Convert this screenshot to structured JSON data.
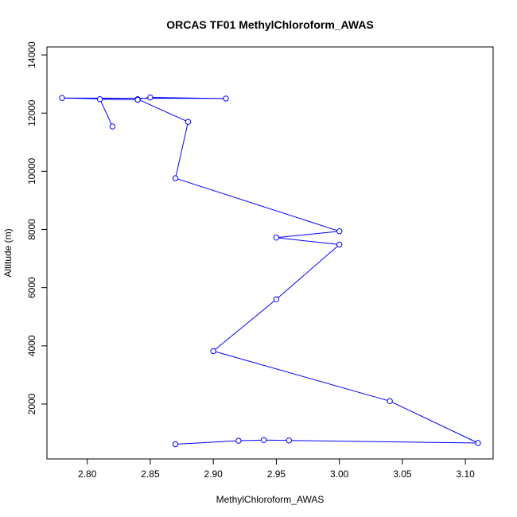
{
  "chart_data": {
    "type": "line",
    "title": "ORCAS TF01 MethylChloroform_AWAS",
    "xlabel": "MethylChloroform_AWAS",
    "ylabel": "Altitude (m)",
    "xlim": [
      2.768,
      3.122
    ],
    "ylim": [
      113,
      14275
    ],
    "x_ticks": [
      2.8,
      2.85,
      2.9,
      2.95,
      3.0,
      3.05,
      3.1
    ],
    "x_tick_labels": [
      "2.80",
      "2.85",
      "2.90",
      "2.95",
      "3.00",
      "3.05",
      "3.10"
    ],
    "y_ticks": [
      2000,
      4000,
      6000,
      8000,
      10000,
      12000,
      14000
    ],
    "y_tick_labels": [
      "2000",
      "4000",
      "6000",
      "8000",
      "10000",
      "12000",
      "14000"
    ],
    "grid": false,
    "series": [
      {
        "color": "#0000ff",
        "marker": "open-circle",
        "x": [
          2.87,
          2.92,
          2.94,
          2.96,
          3.11,
          3.04,
          2.9,
          2.95,
          3.0,
          2.95,
          3.0,
          2.87,
          2.88,
          2.84,
          2.85,
          2.91,
          2.78,
          2.84,
          2.81,
          2.82
        ],
        "y": [
          620,
          740,
          760,
          750,
          660,
          2100,
          3820,
          5600,
          7480,
          7720,
          7940,
          9760,
          11700,
          12480,
          12540,
          12500,
          12520,
          12460,
          12480,
          11540
        ]
      }
    ]
  }
}
